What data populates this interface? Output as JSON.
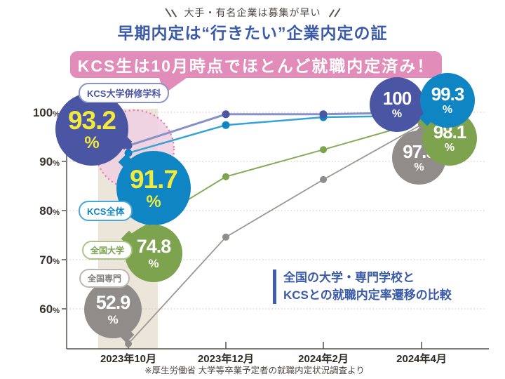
{
  "header": {
    "kicker": "大手・有名企業は募集が早い",
    "title": "早期内定は“行きたい”企業内定の証",
    "banner": "KCS生は10月時点でほとんど就職内定済み！"
  },
  "annotation": {
    "line1": "全国の大学・専門学校と",
    "line2": "KCSとの就職内定率遷移の比較"
  },
  "colors": {
    "title_blue": "#3b5aa8",
    "banner_pink": "#e28cb9",
    "highlight_circle_pink": "#e57fb2",
    "october_band_beige": "#ece6da",
    "bubble_value_yellow": "#f2ea3d"
  },
  "chart_data": {
    "type": "line",
    "categories": [
      "2023年10月",
      "2023年12月",
      "2024年2月",
      "2024年4月"
    ],
    "yticks": [
      100,
      90,
      80,
      70,
      60
    ],
    "ylim": [
      52,
      101
    ],
    "grid": "horizontal-dotted",
    "highlight_month": "2023年10月",
    "percent_sign": "%",
    "source_note": "※厚生労働省 大学等卒業予定者の就職内定状況調査より",
    "series": [
      {
        "name": "KCS大学併修学科",
        "color": "#4a55a3",
        "line_color": "#8791c7",
        "values": [
          93.2,
          99.6,
          99.6,
          100
        ],
        "first_label": "93.2",
        "last_label": "100"
      },
      {
        "name": "KCS全体",
        "color": "#0f86c3",
        "line_color": "#35a3d4",
        "values": [
          91.7,
          97.4,
          99.0,
          99.3
        ],
        "first_label": "91.7",
        "last_label": "99.3"
      },
      {
        "name": "全国大学",
        "color": "#7da34e",
        "line_color": "#85aa58",
        "values": [
          74.8,
          86.9,
          92.4,
          98.1
        ],
        "first_label": "74.8",
        "last_label": "98.1"
      },
      {
        "name": "全国専門",
        "color": "#8f8c89",
        "line_color": "#9b9895",
        "values": [
          52.9,
          74.6,
          86.3,
          97.5
        ],
        "first_label": "52.9",
        "last_label": "97.5"
      }
    ]
  }
}
